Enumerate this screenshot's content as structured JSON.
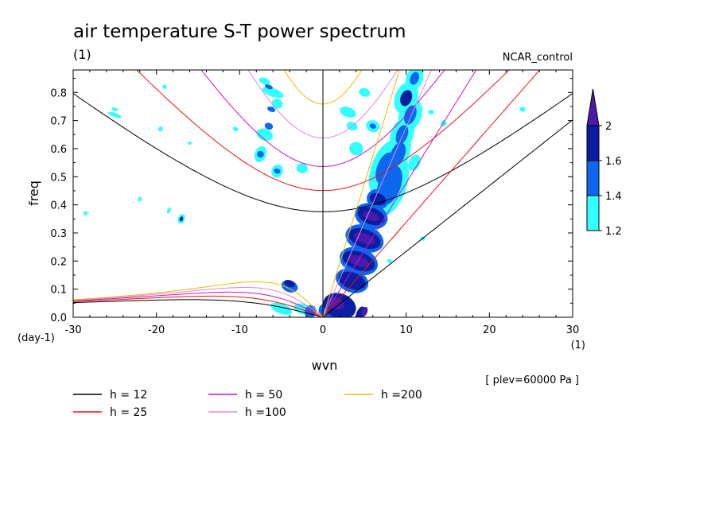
{
  "chart_data": {
    "type": "heatmap",
    "title": "air temperature S-T power spectrum",
    "title_unit": "(1)",
    "case_label": "NCAR_control",
    "xlabel": "wvn",
    "ylabel": "freq",
    "x_unit": "(1)",
    "y_unit": "(day-1)",
    "xlim": [
      -30,
      30
    ],
    "ylim": [
      0,
      0.88
    ],
    "x_ticks": [
      -30,
      -20,
      -10,
      0,
      10,
      20,
      30
    ],
    "y_ticks": [
      0.0,
      0.1,
      0.2,
      0.3,
      0.4,
      0.5,
      0.6,
      0.7,
      0.8
    ],
    "y_tick_labels": [
      "0.0",
      "0.1",
      "0.2",
      "0.3",
      "0.4",
      "0.5",
      "0.6",
      "0.7",
      "0.8"
    ],
    "x_tick_labels": [
      "-30",
      "-20",
      "-10",
      "0",
      "10",
      "20",
      "30"
    ],
    "level_note": "[ plev=60000 Pa ]",
    "colorbar": {
      "levels": [
        "1.2",
        "1.4",
        "1.6",
        "2"
      ],
      "colors": [
        "#33ffff",
        "#0d66ee",
        "#0b1ea3",
        "#4a1aaa"
      ]
    },
    "dispersion_curves": [
      {
        "name": "h = 12",
        "color": "#000000"
      },
      {
        "name": "h = 25",
        "color": "#ee1111"
      },
      {
        "name": "h = 50",
        "color": "#cc11cc"
      },
      {
        "name": "h =100",
        "color": "#dd88dd"
      },
      {
        "name": "h =200",
        "color": "#eebb00"
      }
    ],
    "contour_blobs": [
      {
        "x": 0.8,
        "y": 0.02,
        "rx": 1.0,
        "ry": 0.04,
        "level": 2
      },
      {
        "x": 2.0,
        "y": 0.04,
        "rx": 1.5,
        "ry": 0.06,
        "level": 3
      },
      {
        "x": 1.6,
        "y": 0.05,
        "rx": 0.7,
        "ry": 0.03,
        "level": 4
      },
      {
        "x": 3.5,
        "y": 0.13,
        "rx": 1.4,
        "ry": 0.06,
        "level": 2
      },
      {
        "x": 3.5,
        "y": 0.13,
        "rx": 1.0,
        "ry": 0.05,
        "level": 3
      },
      {
        "x": 4.3,
        "y": 0.2,
        "rx": 1.6,
        "ry": 0.07,
        "level": 2
      },
      {
        "x": 4.3,
        "y": 0.2,
        "rx": 1.1,
        "ry": 0.06,
        "level": 3
      },
      {
        "x": 4.3,
        "y": 0.2,
        "rx": 0.6,
        "ry": 0.04,
        "level": 4
      },
      {
        "x": 5.0,
        "y": 0.28,
        "rx": 1.6,
        "ry": 0.07,
        "level": 2
      },
      {
        "x": 5.0,
        "y": 0.28,
        "rx": 1.1,
        "ry": 0.06,
        "level": 3
      },
      {
        "x": 5.0,
        "y": 0.28,
        "rx": 0.6,
        "ry": 0.04,
        "level": 4
      },
      {
        "x": 5.8,
        "y": 0.36,
        "rx": 1.5,
        "ry": 0.06,
        "level": 2
      },
      {
        "x": 5.8,
        "y": 0.36,
        "rx": 1.0,
        "ry": 0.05,
        "level": 3
      },
      {
        "x": 5.8,
        "y": 0.36,
        "rx": 0.5,
        "ry": 0.03,
        "level": 4
      },
      {
        "x": 6.6,
        "y": 0.42,
        "rx": 1.2,
        "ry": 0.04,
        "level": 2
      },
      {
        "x": 6.6,
        "y": 0.42,
        "rx": 0.7,
        "ry": 0.03,
        "level": 3
      },
      {
        "x": 8.0,
        "y": 0.47,
        "rx": 4.0,
        "ry": 0.06,
        "level": 1
      },
      {
        "x": 8.0,
        "y": 0.47,
        "rx": 2.5,
        "ry": 0.04,
        "level": 2
      },
      {
        "x": 7.5,
        "y": 0.53,
        "rx": 3.5,
        "ry": 0.05,
        "level": 1
      },
      {
        "x": 7.5,
        "y": 0.53,
        "rx": 2.0,
        "ry": 0.03,
        "level": 2
      },
      {
        "x": 9.0,
        "y": 0.58,
        "rx": 2.8,
        "ry": 0.04,
        "level": 1
      },
      {
        "x": 9.0,
        "y": 0.58,
        "rx": 1.5,
        "ry": 0.025,
        "level": 2
      },
      {
        "x": 9.5,
        "y": 0.65,
        "rx": 2.2,
        "ry": 0.04,
        "level": 1
      },
      {
        "x": 9.5,
        "y": 0.65,
        "rx": 1.2,
        "ry": 0.02,
        "level": 2
      },
      {
        "x": 10.5,
        "y": 0.72,
        "rx": 2.0,
        "ry": 0.04,
        "level": 1
      },
      {
        "x": 10.5,
        "y": 0.72,
        "rx": 1.2,
        "ry": 0.02,
        "level": 2
      },
      {
        "x": 10.0,
        "y": 0.78,
        "rx": 2.0,
        "ry": 0.04,
        "level": 1
      },
      {
        "x": 10.0,
        "y": 0.78,
        "rx": 1.0,
        "ry": 0.02,
        "level": 3
      },
      {
        "x": 11.0,
        "y": 0.85,
        "rx": 1.5,
        "ry": 0.03,
        "level": 1
      },
      {
        "x": 11.0,
        "y": 0.85,
        "rx": 0.8,
        "ry": 0.015,
        "level": 2
      },
      {
        "x": 4.5,
        "y": 0.01,
        "rx": 1.0,
        "ry": 0.015,
        "level": 3
      },
      {
        "x": 5.0,
        "y": 0.02,
        "rx": 0.6,
        "ry": 0.01,
        "level": 4
      },
      {
        "x": -4.0,
        "y": 0.11,
        "rx": 0.7,
        "ry": 0.03,
        "level": 2
      },
      {
        "x": -4.0,
        "y": 0.12,
        "rx": 0.4,
        "ry": 0.02,
        "level": 3
      },
      {
        "x": -5.0,
        "y": 0.03,
        "rx": 0.6,
        "ry": 0.04,
        "level": 1
      },
      {
        "x": -2.5,
        "y": 0.03,
        "rx": 0.6,
        "ry": 0.03,
        "level": 1
      },
      {
        "x": -1.5,
        "y": 0.02,
        "rx": 0.8,
        "ry": 0.02,
        "level": 2
      },
      {
        "x": -6.0,
        "y": 0.8,
        "rx": 0.5,
        "ry": 0.04,
        "level": 1
      },
      {
        "x": -7.0,
        "y": 0.84,
        "rx": 0.4,
        "ry": 0.02,
        "level": 1
      },
      {
        "x": -6.5,
        "y": 0.82,
        "rx": 0.25,
        "ry": 0.015,
        "level": 2
      },
      {
        "x": -5.5,
        "y": 0.76,
        "rx": 0.6,
        "ry": 0.02,
        "level": 1
      },
      {
        "x": -6.2,
        "y": 0.74,
        "rx": 0.3,
        "ry": 0.015,
        "level": 2
      },
      {
        "x": -7.0,
        "y": 0.65,
        "rx": 0.7,
        "ry": 0.03,
        "level": 1
      },
      {
        "x": -7.5,
        "y": 0.58,
        "rx": 1.0,
        "ry": 0.02,
        "level": 1
      },
      {
        "x": -7.5,
        "y": 0.58,
        "rx": 0.4,
        "ry": 0.012,
        "level": 2
      },
      {
        "x": -5.5,
        "y": 0.52,
        "rx": 0.8,
        "ry": 0.02,
        "level": 1
      },
      {
        "x": -5.5,
        "y": 0.52,
        "rx": 0.3,
        "ry": 0.012,
        "level": 2
      },
      {
        "x": -2.5,
        "y": 0.53,
        "rx": 0.6,
        "ry": 0.02,
        "level": 1
      },
      {
        "x": 3.0,
        "y": 0.73,
        "rx": 0.6,
        "ry": 0.03,
        "level": 1
      },
      {
        "x": 3.5,
        "y": 0.68,
        "rx": 0.5,
        "ry": 0.02,
        "level": 1
      },
      {
        "x": 6.0,
        "y": 0.68,
        "rx": 0.7,
        "ry": 0.025,
        "level": 1
      },
      {
        "x": 6.0,
        "y": 0.68,
        "rx": 0.3,
        "ry": 0.012,
        "level": 2
      },
      {
        "x": 4.0,
        "y": 0.6,
        "rx": 0.8,
        "ry": 0.025,
        "level": 1
      },
      {
        "x": -6.5,
        "y": 0.68,
        "rx": 0.4,
        "ry": 0.015,
        "level": 2
      },
      {
        "x": -17.0,
        "y": 0.35,
        "rx": 0.6,
        "ry": 0.012,
        "level": 1
      },
      {
        "x": -17.0,
        "y": 0.35,
        "rx": 0.3,
        "ry": 0.006,
        "level": 3
      },
      {
        "x": -25.0,
        "y": 0.72,
        "rx": 0.25,
        "ry": 0.025,
        "level": 1
      },
      {
        "x": -25.0,
        "y": 0.74,
        "rx": 0.2,
        "ry": 0.012,
        "level": 1
      },
      {
        "x": -19.5,
        "y": 0.67,
        "rx": 0.3,
        "ry": 0.008,
        "level": 1
      },
      {
        "x": -28.5,
        "y": 0.37,
        "rx": 0.25,
        "ry": 0.008,
        "level": 1
      },
      {
        "x": -18.5,
        "y": 0.38,
        "rx": 0.4,
        "ry": 0.006,
        "level": 1
      },
      {
        "x": -19.0,
        "y": 0.82,
        "rx": 0.25,
        "ry": 0.008,
        "level": 1
      },
      {
        "x": -10.5,
        "y": 0.67,
        "rx": 0.25,
        "ry": 0.01,
        "level": 1
      },
      {
        "x": -16.0,
        "y": 0.62,
        "rx": 0.2,
        "ry": 0.007,
        "level": 1
      },
      {
        "x": -22.0,
        "y": 0.42,
        "rx": 0.3,
        "ry": 0.007,
        "level": 1
      },
      {
        "x": 5.0,
        "y": 0.8,
        "rx": 0.5,
        "ry": 0.02,
        "level": 1
      },
      {
        "x": 11.0,
        "y": 0.55,
        "rx": 1.0,
        "ry": 0.02,
        "level": 1
      },
      {
        "x": 24.0,
        "y": 0.74,
        "rx": 0.3,
        "ry": 0.01,
        "level": 1
      },
      {
        "x": 14.5,
        "y": 0.69,
        "rx": 0.4,
        "ry": 0.01,
        "level": 1
      },
      {
        "x": 13.0,
        "y": 0.73,
        "rx": 0.3,
        "ry": 0.01,
        "level": 1
      },
      {
        "x": 12.0,
        "y": 0.28,
        "rx": 0.25,
        "ry": 0.008,
        "level": 1
      },
      {
        "x": 8.0,
        "y": 0.2,
        "rx": 0.25,
        "ry": 0.008,
        "level": 1
      }
    ]
  }
}
